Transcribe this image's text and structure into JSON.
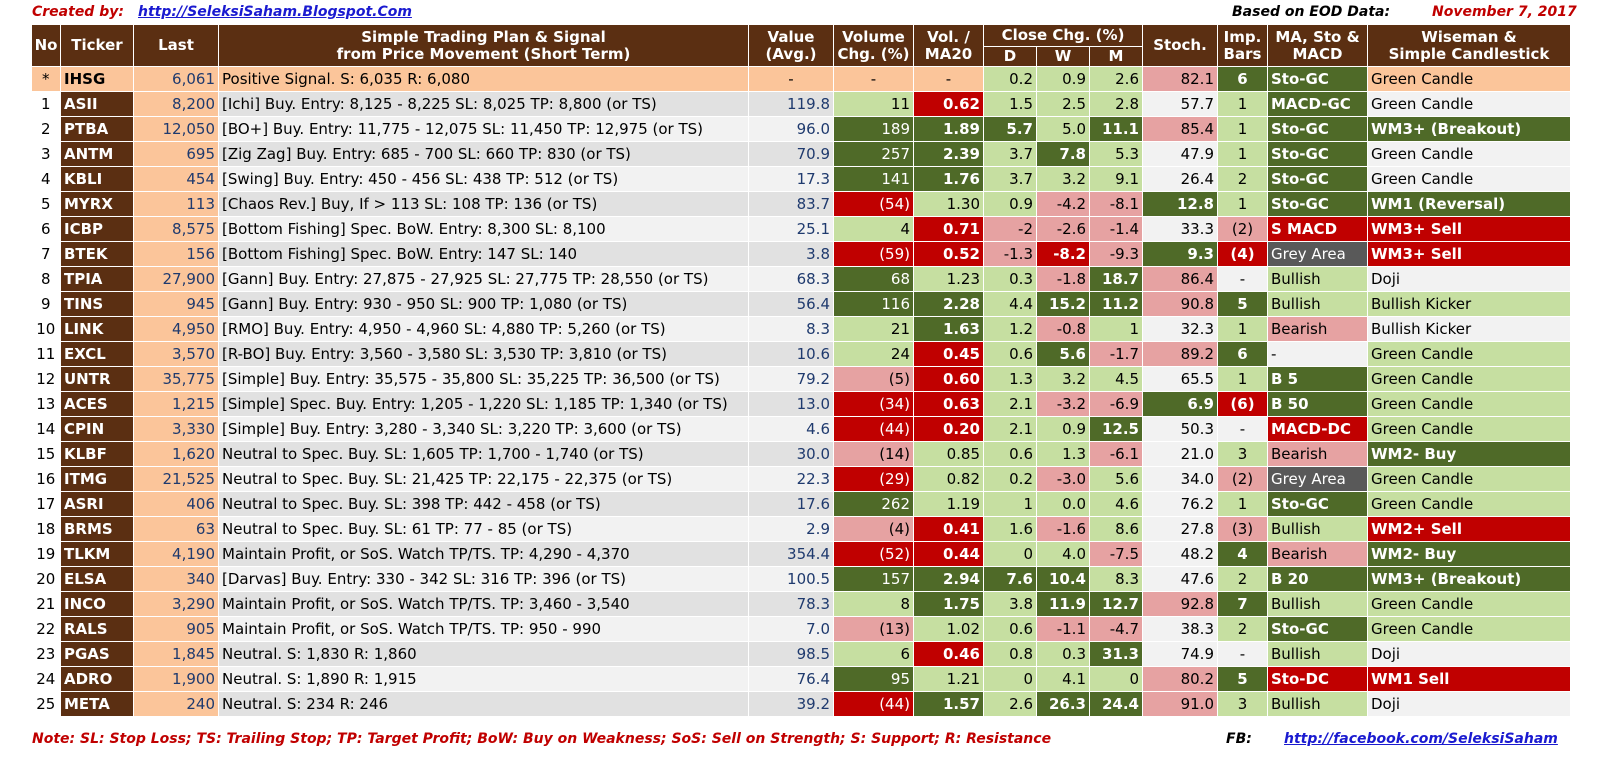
{
  "header": {
    "created_by_label": "Created by:",
    "created_by_link": "http://SeleksiSaham.Blogspot.Com",
    "eod_label": "Based on EOD Data:",
    "date": "November 7, 2017"
  },
  "columns": {
    "no": "No",
    "ticker": "Ticker",
    "last": "Last",
    "plan_line1": "Simple Trading Plan & Signal",
    "plan_line2": "from Price Movement (Short Term)",
    "value_line1": "Value",
    "value_line2": "(Avg.)",
    "volume_line1": "Volume",
    "volume_line2": "Chg. (%)",
    "vol_line1": "Vol. /",
    "vol_line2": "MA20",
    "close_chg": "Close Chg. (%)",
    "d": "D",
    "w": "W",
    "m": "M",
    "stoch": "Stoch.",
    "imp_line1": "Imp.",
    "imp_line2": "Bars",
    "ma_line1": "MA, Sto &",
    "ma_line2": "MACD",
    "wise_line1": "Wiseman  &",
    "wise_line2": "Simple Candlestick"
  },
  "rows": [
    {
      "no": "*",
      "ticker": "IHSG",
      "last": "6,061",
      "plan": "Positive Signal.  S:  6,035  R:  6,080",
      "value": "-",
      "volume": "-",
      "vol": "-",
      "d": "0.2",
      "w": "0.9",
      "m": "2.6",
      "stoch": "82.1",
      "imp": "6",
      "ma": "Sto-GC",
      "wise": "Green Candle"
    },
    {
      "no": "1",
      "ticker": "ASII",
      "last": "8,200",
      "plan": "[Ichi] Buy.  Entry:  8,125 -  8,225  SL:  8,025 TP:  8,800 (or TS)",
      "value": "119.8",
      "volume": "11",
      "vol": "0.62",
      "d": "1.5",
      "w": "2.5",
      "m": "2.8",
      "stoch": "57.7",
      "imp": "1",
      "ma": "MACD-GC",
      "wise": "Green Candle"
    },
    {
      "no": "2",
      "ticker": "PTBA",
      "last": "12,050",
      "plan": "[BO+] Buy.  Entry: 11,775 - 12,075  SL: 11,450 TP: 12,975 (or TS)",
      "value": "96.0",
      "volume": "189",
      "vol": "1.89",
      "d": "5.7",
      "w": "5.0",
      "m": "11.1",
      "stoch": "85.4",
      "imp": "1",
      "ma": "Sto-GC",
      "wise": "WM3+ (Breakout)"
    },
    {
      "no": "3",
      "ticker": "ANTM",
      "last": "695",
      "plan": "[Zig Zag] Buy.  Entry:    685 -    700  SL:    660 TP:    830 (or TS)",
      "value": "70.9",
      "volume": "257",
      "vol": "2.39",
      "d": "3.7",
      "w": "7.8",
      "m": "5.3",
      "stoch": "47.9",
      "imp": "1",
      "ma": "Sto-GC",
      "wise": "Green Candle"
    },
    {
      "no": "4",
      "ticker": "KBLI",
      "last": "454",
      "plan": "[Swing] Buy.  Entry:    450 -    456  SL:    438 TP:    512 (or TS)",
      "value": "17.3",
      "volume": "141",
      "vol": "1.76",
      "d": "3.7",
      "w": "3.2",
      "m": "9.1",
      "stoch": "26.4",
      "imp": "2",
      "ma": "Sto-GC",
      "wise": "Green Candle"
    },
    {
      "no": "5",
      "ticker": "MYRX",
      "last": "113",
      "plan": "[Chaos Rev.] Buy, If >    113  SL:    108 TP:    136 (or TS)",
      "value": "83.7",
      "volume": "(54)",
      "vol": "1.30",
      "d": "0.9",
      "w": "-4.2",
      "m": "-8.1",
      "stoch": "12.8",
      "imp": "1",
      "ma": "Sto-GC",
      "wise": "WM1 (Reversal)"
    },
    {
      "no": "6",
      "ticker": "ICBP",
      "last": "8,575",
      "plan": "[Bottom Fishing]  Spec. BoW. Entry:  8,300  SL:  8,100",
      "value": "25.1",
      "volume": "4",
      "vol": "0.71",
      "d": "-2",
      "w": "-2.6",
      "m": "-1.4",
      "stoch": "33.3",
      "imp": "(2)",
      "ma": "S MACD",
      "wise": "WM3+ Sell"
    },
    {
      "no": "7",
      "ticker": "BTEK",
      "last": "156",
      "plan": "[Bottom Fishing]  Spec. BoW. Entry:    147  SL:    140",
      "value": "3.8",
      "volume": "(59)",
      "vol": "0.52",
      "d": "-1.3",
      "w": "-8.2",
      "m": "-9.3",
      "stoch": "9.3",
      "imp": "(4)",
      "ma": "Grey Area",
      "wise": "WM3+ Sell"
    },
    {
      "no": "8",
      "ticker": "TPIA",
      "last": "27,900",
      "plan": "[Gann] Buy.  Entry: 27,875 - 27,925  SL: 27,775 TP: 28,550 (or TS)",
      "value": "68.3",
      "volume": "68",
      "vol": "1.23",
      "d": "0.3",
      "w": "-1.8",
      "m": "18.7",
      "stoch": "86.4",
      "imp": "-",
      "ma": "Bullish",
      "wise": "Doji"
    },
    {
      "no": "9",
      "ticker": "TINS",
      "last": "945",
      "plan": "[Gann] Buy.  Entry:    930 -    950  SL:    900 TP:  1,080 (or TS)",
      "value": "56.4",
      "volume": "116",
      "vol": "2.28",
      "d": "4.4",
      "w": "15.2",
      "m": "11.2",
      "stoch": "90.8",
      "imp": "5",
      "ma": "Bullish",
      "wise": "Bullish Kicker"
    },
    {
      "no": "10",
      "ticker": "LINK",
      "last": "4,950",
      "plan": "[RMO] Buy.  Entry:  4,950 -  4,960  SL:  4,880 TP:  5,260 (or TS)",
      "value": "8.3",
      "volume": "21",
      "vol": "1.63",
      "d": "1.2",
      "w": "-0.8",
      "m": "1",
      "stoch": "32.3",
      "imp": "1",
      "ma": "Bearish",
      "wise": "Bullish Kicker"
    },
    {
      "no": "11",
      "ticker": "EXCL",
      "last": "3,570",
      "plan": "[R-BO] Buy.  Entry:  3,560 -  3,580  SL:  3,530 TP:  3,810 (or TS)",
      "value": "10.6",
      "volume": "24",
      "vol": "0.45",
      "d": "0.6",
      "w": "5.6",
      "m": "-1.7",
      "stoch": "89.2",
      "imp": "6",
      "ma": " -",
      "wise": "Green Candle"
    },
    {
      "no": "12",
      "ticker": "UNTR",
      "last": "35,775",
      "plan": "[Simple] Buy.  Entry: 35,575 - 35,800  SL: 35,225 TP: 36,500 (or TS)",
      "value": "79.2",
      "volume": "(5)",
      "vol": "0.60",
      "d": "1.3",
      "w": "3.2",
      "m": "4.5",
      "stoch": "65.5",
      "imp": "1",
      "ma": "B 5",
      "wise": "Green Candle"
    },
    {
      "no": "13",
      "ticker": "ACES",
      "last": "1,215",
      "plan": "[Simple] Spec. Buy. Entry:  1,205 -  1,220  SL:  1,185 TP:  1,340 (or TS)",
      "value": "13.0",
      "volume": "(34)",
      "vol": "0.63",
      "d": "2.1",
      "w": "-3.2",
      "m": "-6.9",
      "stoch": "6.9",
      "imp": "(6)",
      "ma": "B 50",
      "wise": "Green Candle"
    },
    {
      "no": "14",
      "ticker": "CPIN",
      "last": "3,330",
      "plan": "[Simple] Buy.  Entry:  3,280 -  3,340  SL:  3,220 TP:  3,600 (or TS)",
      "value": "4.6",
      "volume": "(44)",
      "vol": "0.20",
      "d": "2.1",
      "w": "0.9",
      "m": "12.5",
      "stoch": "50.3",
      "imp": "-",
      "ma": "MACD-DC",
      "wise": "Green Candle"
    },
    {
      "no": "15",
      "ticker": "KLBF",
      "last": "1,620",
      "plan": "Neutral to Spec. Buy.  SL:  1,605 TP:  1,700 -  1,740 (or TS)",
      "value": "30.0",
      "volume": "(14)",
      "vol": "0.85",
      "d": "0.6",
      "w": "1.3",
      "m": "-6.1",
      "stoch": "21.0",
      "imp": "3",
      "ma": "Bearish",
      "wise": "WM2- Buy"
    },
    {
      "no": "16",
      "ticker": "ITMG",
      "last": "21,525",
      "plan": "Neutral to Spec. Buy.  SL: 21,425 TP: 22,175 - 22,375 (or TS)",
      "value": "22.3",
      "volume": "(29)",
      "vol": "0.82",
      "d": "0.2",
      "w": "-3.0",
      "m": "5.6",
      "stoch": "34.0",
      "imp": "(2)",
      "ma": "Grey Area",
      "wise": "Green Candle"
    },
    {
      "no": "17",
      "ticker": "ASRI",
      "last": "406",
      "plan": "Neutral to Spec. Buy.  SL:    398 TP:    442 -    458 (or TS)",
      "value": "17.6",
      "volume": "262",
      "vol": "1.19",
      "d": "1",
      "w": "0.0",
      "m": "4.6",
      "stoch": "76.2",
      "imp": "1",
      "ma": "Sto-GC",
      "wise": "Green Candle"
    },
    {
      "no": "18",
      "ticker": "BRMS",
      "last": "63",
      "plan": "Neutral to Spec. Buy.  SL:      61 TP:      77 -      85 (or TS)",
      "value": "2.9",
      "volume": "(4)",
      "vol": "0.41",
      "d": "1.6",
      "w": "-1.6",
      "m": "8.6",
      "stoch": "27.8",
      "imp": "(3)",
      "ma": "Bullish",
      "wise": "WM2+ Sell"
    },
    {
      "no": "19",
      "ticker": "TLKM",
      "last": "4,190",
      "plan": "Maintain Profit, or SoS. Watch TP/TS.  TP:  4,290 -  4,370",
      "value": "354.4",
      "volume": "(52)",
      "vol": "0.44",
      "d": "0",
      "w": "4.0",
      "m": "-7.5",
      "stoch": "48.2",
      "imp": "4",
      "ma": "Bearish",
      "wise": "WM2- Buy"
    },
    {
      "no": "20",
      "ticker": "ELSA",
      "last": "340",
      "plan": "[Darvas] Buy.  Entry:    330 -    342  SL:    316 TP:    396 (or TS)",
      "value": "100.5",
      "volume": "157",
      "vol": "2.94",
      "d": "7.6",
      "w": "10.4",
      "m": "8.3",
      "stoch": "47.6",
      "imp": "2",
      "ma": "B 20",
      "wise": "WM3+ (Breakout)"
    },
    {
      "no": "21",
      "ticker": "INCO",
      "last": "3,290",
      "plan": "Maintain Profit, or SoS. Watch TP/TS.  TP:  3,460 -  3,540",
      "value": "78.3",
      "volume": "8",
      "vol": "1.75",
      "d": "3.8",
      "w": "11.9",
      "m": "12.7",
      "stoch": "92.8",
      "imp": "7",
      "ma": "Bullish",
      "wise": "Green Candle"
    },
    {
      "no": "22",
      "ticker": "RALS",
      "last": "905",
      "plan": "Maintain Profit, or SoS. Watch TP/TS.  TP:    950 -    990",
      "value": "7.0",
      "volume": "(13)",
      "vol": "1.02",
      "d": "0.6",
      "w": "-1.1",
      "m": "-4.7",
      "stoch": "38.3",
      "imp": "2",
      "ma": "Sto-GC",
      "wise": "Green Candle"
    },
    {
      "no": "23",
      "ticker": "PGAS",
      "last": "1,845",
      "plan": "Neutral.  S:  1,830  R:  1,860",
      "value": "98.5",
      "volume": "6",
      "vol": "0.46",
      "d": "0.8",
      "w": "0.3",
      "m": "31.3",
      "stoch": "74.9",
      "imp": "-",
      "ma": "Bullish",
      "wise": "Doji"
    },
    {
      "no": "24",
      "ticker": "ADRO",
      "last": "1,900",
      "plan": "Neutral.  S:  1,890  R:  1,915",
      "value": "76.4",
      "volume": "95",
      "vol": "1.21",
      "d": "0",
      "w": "4.1",
      "m": "0",
      "stoch": "80.2",
      "imp": "5",
      "ma": "Sto-DC",
      "wise": "WM1 Sell"
    },
    {
      "no": "25",
      "ticker": "META",
      "last": "240",
      "plan": "Neutral.  S:    234  R:  246",
      "value": "39.2",
      "volume": "(44)",
      "vol": "1.57",
      "d": "2.6",
      "w": "26.3",
      "m": "24.4",
      "stoch": "91.0",
      "imp": "3",
      "ma": "Bullish",
      "wise": "Doji"
    }
  ],
  "cell_colors": [
    {
      "volume": "nc",
      "vol": "nc",
      "d": "lg",
      "w": "lg",
      "m": "lg",
      "stoch": "pk",
      "imp": "dg",
      "ma": "dg",
      "wise": "ihsg"
    },
    {
      "volume": "lg",
      "vol": "rd",
      "d": "lg",
      "w": "lg",
      "m": "lg",
      "stoch": "wh",
      "imp": "lg",
      "ma": "dg",
      "wise": "wh"
    },
    {
      "volume": "dg",
      "vol": "dg",
      "d": "dg",
      "w": "lg",
      "m": "dg",
      "stoch": "pk",
      "imp": "lg",
      "ma": "dg",
      "wise": "dg"
    },
    {
      "volume": "dg",
      "vol": "dg",
      "d": "lg",
      "w": "dg",
      "m": "lg",
      "stoch": "wh",
      "imp": "lg",
      "ma": "dg",
      "wise": "wh"
    },
    {
      "volume": "dg",
      "vol": "dg",
      "d": "lg",
      "w": "lg",
      "m": "lg",
      "stoch": "wh",
      "imp": "lg",
      "ma": "dg",
      "wise": "wh"
    },
    {
      "volume": "rd",
      "vol": "lg",
      "d": "lg",
      "w": "pk",
      "m": "pk",
      "stoch": "dg",
      "imp": "lg",
      "ma": "dg",
      "wise": "dg"
    },
    {
      "volume": "lg",
      "vol": "rd",
      "d": "pk",
      "w": "pk",
      "m": "pk",
      "stoch": "wh",
      "imp": "pk",
      "ma": "rd",
      "wise": "rd"
    },
    {
      "volume": "rd",
      "vol": "rd",
      "d": "pk",
      "w": "rd",
      "m": "pk",
      "stoch": "dg",
      "imp": "rd",
      "ma": "gy",
      "wise": "rd"
    },
    {
      "volume": "dg",
      "vol": "lg",
      "d": "lg",
      "w": "pk",
      "m": "dg",
      "stoch": "pk",
      "imp": "wh",
      "ma": "lg",
      "wise": "wh"
    },
    {
      "volume": "dg",
      "vol": "dg",
      "d": "lg",
      "w": "dg",
      "m": "dg",
      "stoch": "pk",
      "imp": "dg",
      "ma": "lg",
      "wise": "lg"
    },
    {
      "volume": "lg",
      "vol": "dg",
      "d": "lg",
      "w": "pk",
      "m": "lg",
      "stoch": "wh",
      "imp": "lg",
      "ma": "pk",
      "wise": "wh"
    },
    {
      "volume": "lg",
      "vol": "rd",
      "d": "lg",
      "w": "dg",
      "m": "pk",
      "stoch": "pk",
      "imp": "dg",
      "ma": "wh",
      "wise": "lg"
    },
    {
      "volume": "pk",
      "vol": "rd",
      "d": "lg",
      "w": "lg",
      "m": "lg",
      "stoch": "wh",
      "imp": "lg",
      "ma": "dg",
      "wise": "lg"
    },
    {
      "volume": "rd",
      "vol": "rd",
      "d": "lg",
      "w": "pk",
      "m": "pk",
      "stoch": "dg",
      "imp": "rd",
      "ma": "dg",
      "wise": "lg"
    },
    {
      "volume": "rd",
      "vol": "rd",
      "d": "lg",
      "w": "lg",
      "m": "dg",
      "stoch": "wh",
      "imp": "wh",
      "ma": "rd",
      "wise": "lg"
    },
    {
      "volume": "pk",
      "vol": "lg",
      "d": "lg",
      "w": "lg",
      "m": "pk",
      "stoch": "wh",
      "imp": "lg",
      "ma": "pk",
      "wise": "dg"
    },
    {
      "volume": "rd",
      "vol": "lg",
      "d": "lg",
      "w": "pk",
      "m": "lg",
      "stoch": "wh",
      "imp": "pk",
      "ma": "gy",
      "wise": "lg"
    },
    {
      "volume": "dg",
      "vol": "lg",
      "d": "lg",
      "w": "lg",
      "m": "lg",
      "stoch": "wh",
      "imp": "lg",
      "ma": "dg",
      "wise": "lg"
    },
    {
      "volume": "pk",
      "vol": "rd",
      "d": "lg",
      "w": "pk",
      "m": "lg",
      "stoch": "wh",
      "imp": "pk",
      "ma": "lg",
      "wise": "rd"
    },
    {
      "volume": "rd",
      "vol": "rd",
      "d": "lg",
      "w": "lg",
      "m": "pk",
      "stoch": "wh",
      "imp": "dg",
      "ma": "pk",
      "wise": "dg"
    },
    {
      "volume": "dg",
      "vol": "dg",
      "d": "dg",
      "w": "dg",
      "m": "lg",
      "stoch": "wh",
      "imp": "lg",
      "ma": "dg",
      "wise": "dg"
    },
    {
      "volume": "lg",
      "vol": "dg",
      "d": "lg",
      "w": "dg",
      "m": "dg",
      "stoch": "pk",
      "imp": "dg",
      "ma": "lg",
      "wise": "lg"
    },
    {
      "volume": "pk",
      "vol": "lg",
      "d": "lg",
      "w": "pk",
      "m": "pk",
      "stoch": "wh",
      "imp": "lg",
      "ma": "dg",
      "wise": "lg"
    },
    {
      "volume": "lg",
      "vol": "rd",
      "d": "lg",
      "w": "lg",
      "m": "dg",
      "stoch": "wh",
      "imp": "wh",
      "ma": "lg",
      "wise": "wh"
    },
    {
      "volume": "dg",
      "vol": "lg",
      "d": "lg",
      "w": "lg",
      "m": "lg",
      "stoch": "pk",
      "imp": "dg",
      "ma": "rd",
      "wise": "rd"
    },
    {
      "volume": "rd",
      "vol": "dg",
      "d": "lg",
      "w": "dg",
      "m": "dg",
      "stoch": "pk",
      "imp": "lg",
      "ma": "lg",
      "wise": "wh"
    }
  ],
  "footer": {
    "note": "Note:  SL: Stop Loss; TS: Trailing Stop; TP: Target Profit; BoW: Buy on Weakness; SoS: Sell on Strength; S: Support; R: Resistance",
    "fb_label": "FB:",
    "fb_link": "http://facebook.com/SeleksiSaham"
  }
}
